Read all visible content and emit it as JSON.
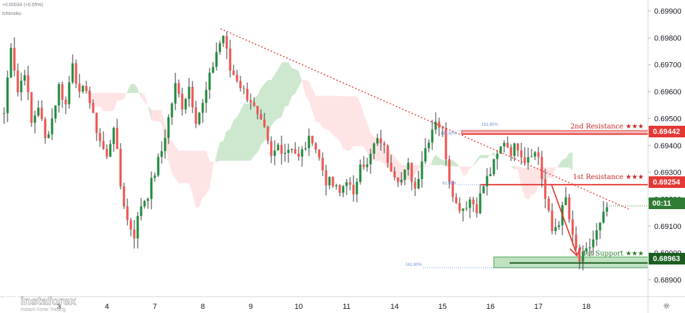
{
  "header": {
    "change_text": "+0.00034 (+0.05%)",
    "indicator_name": "Ichimoku"
  },
  "branding": {
    "logo_name": "instaforex",
    "tagline": "Instant Forex Trading"
  },
  "colors": {
    "bull": "#26a69a",
    "bull_dark": "#1e8a3c",
    "bear": "#ef5350",
    "cloud_bull": "#a5d6a7",
    "cloud_bear": "#ffcdd2",
    "resistance": "#e53935",
    "support": "#43a047",
    "trendline": "#e53935",
    "current_price": "#2e7d32",
    "fib": "#6b8fd6"
  },
  "chart_data": {
    "type": "candlestick",
    "instrument_pair_precision": 5,
    "ylim": [
      0.6885,
      0.6995
    ],
    "y_ticks": [
      "0.69900",
      "0.69800",
      "0.69700",
      "0.69600",
      "0.69500",
      "0.69400",
      "0.69300",
      "0.69200",
      "0.69100",
      "0.69000",
      "0.68900"
    ],
    "x_tick_labels": [
      "3",
      "4",
      "7",
      "8",
      "9",
      "10",
      "11",
      "14",
      "15",
      "16",
      "17",
      "18"
    ],
    "x_tick_index": [
      16,
      30,
      44,
      58,
      72,
      86,
      100,
      114,
      128,
      142,
      156,
      170
    ],
    "bar_count": 190,
    "candles_close_path": [
      [
        0,
        0.6952
      ],
      [
        2,
        0.6978
      ],
      [
        4,
        0.696
      ],
      [
        6,
        0.6968
      ],
      [
        8,
        0.6948
      ],
      [
        10,
        0.6955
      ],
      [
        12,
        0.6942
      ],
      [
        14,
        0.695
      ],
      [
        16,
        0.6962
      ],
      [
        18,
        0.6955
      ],
      [
        20,
        0.6972
      ],
      [
        22,
        0.6958
      ],
      [
        24,
        0.6962
      ],
      [
        26,
        0.695
      ],
      [
        28,
        0.6942
      ],
      [
        30,
        0.6935
      ],
      [
        32,
        0.6948
      ],
      [
        34,
        0.6925
      ],
      [
        36,
        0.6912
      ],
      [
        38,
        0.6907
      ],
      [
        40,
        0.6918
      ],
      [
        42,
        0.6922
      ],
      [
        44,
        0.693
      ],
      [
        46,
        0.6938
      ],
      [
        48,
        0.695
      ],
      [
        50,
        0.6962
      ],
      [
        52,
        0.6955
      ],
      [
        54,
        0.6962
      ],
      [
        56,
        0.695
      ],
      [
        58,
        0.6955
      ],
      [
        60,
        0.6965
      ],
      [
        62,
        0.6975
      ],
      [
        64,
        0.6981
      ],
      [
        66,
        0.6968
      ],
      [
        68,
        0.6965
      ],
      [
        70,
        0.696
      ],
      [
        72,
        0.6957
      ],
      [
        74,
        0.695
      ],
      [
        76,
        0.6945
      ],
      [
        78,
        0.6935
      ],
      [
        80,
        0.694
      ],
      [
        82,
        0.6938
      ],
      [
        84,
        0.694
      ],
      [
        86,
        0.6935
      ],
      [
        88,
        0.694
      ],
      [
        90,
        0.6943
      ],
      [
        92,
        0.6935
      ],
      [
        94,
        0.6927
      ],
      [
        96,
        0.6925
      ],
      [
        98,
        0.6922
      ],
      [
        100,
        0.6928
      ],
      [
        102,
        0.692
      ],
      [
        104,
        0.6935
      ],
      [
        106,
        0.6932
      ],
      [
        108,
        0.694
      ],
      [
        110,
        0.6942
      ],
      [
        112,
        0.6935
      ],
      [
        114,
        0.693
      ],
      [
        116,
        0.6927
      ],
      [
        118,
        0.6932
      ],
      [
        120,
        0.6924
      ],
      [
        122,
        0.6935
      ],
      [
        124,
        0.6943
      ],
      [
        126,
        0.695
      ],
      [
        128,
        0.6945
      ],
      [
        130,
        0.6928
      ],
      [
        132,
        0.6918
      ],
      [
        134,
        0.6917
      ],
      [
        136,
        0.692
      ],
      [
        138,
        0.6917
      ],
      [
        140,
        0.6925
      ],
      [
        142,
        0.693
      ],
      [
        144,
        0.6936
      ],
      [
        146,
        0.6942
      ],
      [
        148,
        0.6938
      ],
      [
        150,
        0.694
      ],
      [
        152,
        0.6935
      ],
      [
        154,
        0.6938
      ],
      [
        156,
        0.6936
      ],
      [
        158,
        0.692
      ],
      [
        160,
        0.6908
      ],
      [
        162,
        0.6912
      ],
      [
        164,
        0.692
      ],
      [
        166,
        0.6905
      ],
      [
        168,
        0.6897
      ],
      [
        170,
        0.69
      ],
      [
        172,
        0.6905
      ],
      [
        174,
        0.691
      ],
      [
        176,
        0.6917
      ]
    ],
    "annotations": {
      "second_resistance": {
        "label": "2nd Resistance ★★★",
        "price": 0.69442,
        "price_text": "0.69442",
        "zone_top": 0.69455,
        "fib_label": "161.80%"
      },
      "first_resistance": {
        "label": "1st Resistance ★★★",
        "price": 0.69254,
        "price_text": "0.69254",
        "fib_label": "61.80%"
      },
      "first_support": {
        "label": "1st Support ★★★",
        "price": 0.68963,
        "price_text": "0.68963",
        "zone_top": 0.68985,
        "zone_bottom": 0.68945,
        "fib_label": "161.80%"
      },
      "current_price_tag": "00:11",
      "current_price": 0.69175,
      "fib_label_upper": "161.80%"
    }
  }
}
